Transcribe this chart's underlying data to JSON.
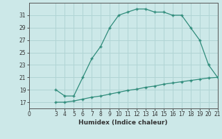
{
  "xlabel": "Humidex (Indice chaleur)",
  "upper_x": [
    3,
    4,
    5,
    6,
    7,
    8,
    9,
    10,
    11,
    12,
    13,
    14,
    15,
    16,
    17,
    18,
    19,
    20,
    21
  ],
  "upper_y": [
    19,
    18,
    18,
    21,
    24,
    26,
    29,
    31,
    31.5,
    32,
    32,
    31.5,
    31.5,
    31,
    31,
    29,
    27,
    23,
    21
  ],
  "lower_x": [
    3,
    4,
    5,
    6,
    7,
    8,
    9,
    10,
    11,
    12,
    13,
    14,
    15,
    16,
    17,
    18,
    19,
    20,
    21
  ],
  "lower_y": [
    17,
    17,
    17.2,
    17.5,
    17.8,
    18.0,
    18.3,
    18.6,
    18.9,
    19.1,
    19.4,
    19.6,
    19.9,
    20.1,
    20.3,
    20.5,
    20.7,
    20.9,
    21.0
  ],
  "line_color": "#2e8b7a",
  "bg_color": "#cce8e8",
  "grid_color": "#b0d4d4",
  "xlim": [
    0,
    21
  ],
  "ylim": [
    16,
    33
  ],
  "yticks": [
    17,
    19,
    21,
    23,
    25,
    27,
    29,
    31
  ],
  "xticks": [
    0,
    3,
    4,
    5,
    6,
    7,
    8,
    9,
    10,
    11,
    12,
    13,
    14,
    15,
    16,
    17,
    18,
    19,
    20,
    21
  ],
  "tick_fontsize": 5.5,
  "xlabel_fontsize": 6.5
}
